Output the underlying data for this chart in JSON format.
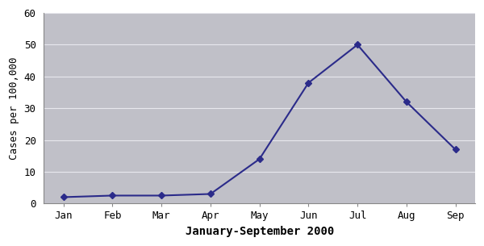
{
  "months": [
    "Jan",
    "Feb",
    "Mar",
    "Apr",
    "May",
    "Jun",
    "Jul",
    "Aug",
    "Sep"
  ],
  "values": [
    2,
    2.5,
    2.5,
    3,
    14,
    38,
    50,
    32,
    17
  ],
  "xlabel": "January-September 2000",
  "ylabel": "Cases per 100,000",
  "ylim": [
    0,
    60
  ],
  "yticks": [
    0,
    10,
    20,
    30,
    40,
    50,
    60
  ],
  "line_color": "#2b2b8a",
  "marker": "D",
  "marker_size": 4,
  "plot_bg_color": "#c0c0c8",
  "fig_bg_color": "#ffffff",
  "grid_color": "#e8e8ee",
  "line_width": 1.5,
  "xlabel_fontsize": 10,
  "ylabel_fontsize": 9,
  "tick_fontsize": 9
}
